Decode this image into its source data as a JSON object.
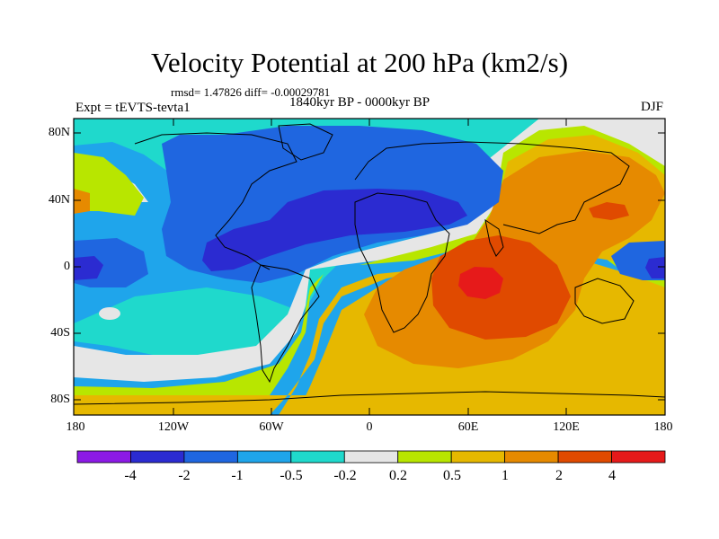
{
  "title": "Velocity Potential at 200 hPa (km2/s)",
  "stats": "rmsd= 1.47826 diff= -0.00029781",
  "left_label": "Expt = tEVTS-tevta1",
  "center_label": "1840kyr BP - 0000kyr BP",
  "right_label": "DJF",
  "lat_labels": [
    "80N",
    "40N",
    "0",
    "40S",
    "80S"
  ],
  "lon_labels": [
    "180",
    "120W",
    "60W",
    "0",
    "60E",
    "120E",
    "180"
  ],
  "colorbar": {
    "labels": [
      "-4",
      "-2",
      "-1",
      "-0.5",
      "-0.2",
      "0.2",
      "0.5",
      "1",
      "2",
      "4"
    ],
    "colors": [
      "#8c1ae6",
      "#2b2bd1",
      "#1f66e0",
      "#1fa5eb",
      "#1fd9cc",
      "#e6e6e6",
      "#b8e600",
      "#e6b800",
      "#e68a00",
      "#e04a00",
      "#e61a1a"
    ]
  },
  "map_colors": {
    "level_n2": "#2b2bd1",
    "level_n1": "#1f66e0",
    "level_n05": "#1fa5eb",
    "level_n02": "#1fd9cc",
    "level_0": "#e6e6e6",
    "level_02": "#b8e600",
    "level_05": "#e6b800",
    "level_1": "#e68a00",
    "level_2": "#e04a00",
    "level_4": "#e61a1a"
  }
}
